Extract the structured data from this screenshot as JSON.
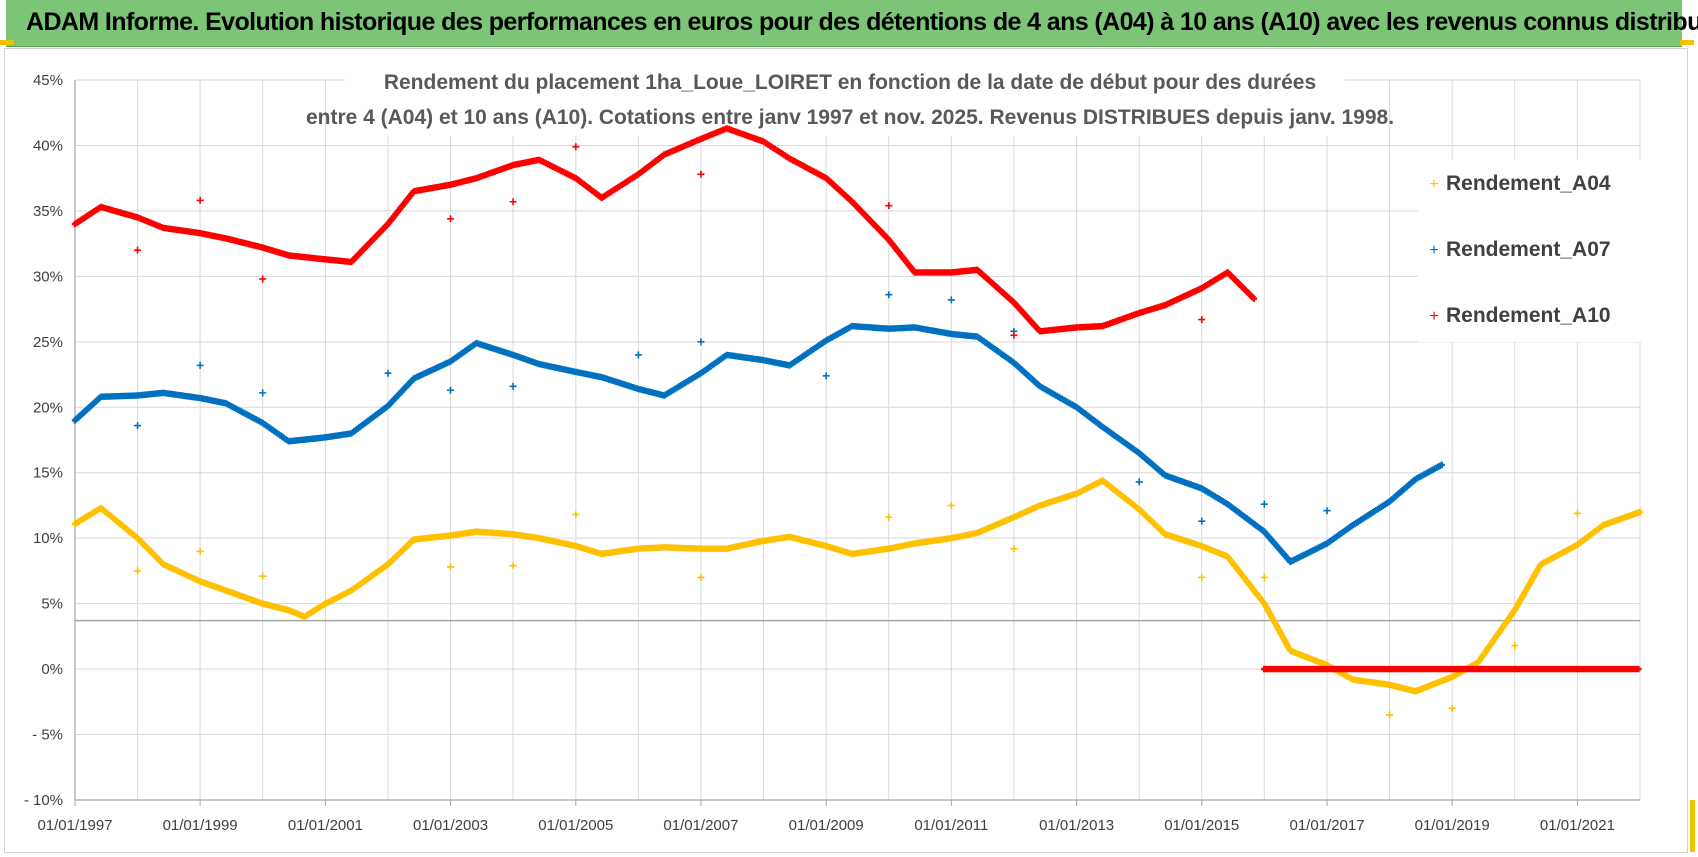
{
  "banner": {
    "title": "ADAM Informe. Evolution historique des performances en euros pour des détentions de 4 ans (A04) à 10 ans (A10) avec les revenus connus distribués"
  },
  "colors": {
    "banner_bg": "#7cc576",
    "accent": "#f2c200",
    "a04": "#ffc000",
    "a07": "#0070c0",
    "a10": "#ff0000",
    "grid": "#d9d9d9"
  },
  "chart_data": {
    "type": "scatter",
    "title_lines": [
      "Rendement du placement 1ha_Loue_LOIRET en fonction de la date de début pour des durées",
      "entre 4 (A04) et 10 ans (A10). Cotations entre janv 1997 et nov. 2025. Revenus DISTRIBUES depuis janv. 1998."
    ],
    "xlabel": "",
    "ylabel": "",
    "xlim": [
      "1997-01-01",
      "2022-01-01"
    ],
    "ylim": [
      -10,
      45
    ],
    "x_ticks": [
      "01/01/1997",
      "01/01/1999",
      "01/01/2001",
      "01/01/2003",
      "01/01/2005",
      "01/01/2007",
      "01/01/2009",
      "01/01/2011",
      "01/01/2013",
      "01/01/2015",
      "01/01/2017",
      "01/01/2019",
      "01/01/2021"
    ],
    "y_ticks": [
      "45%",
      "40%",
      "35%",
      "30%",
      "25%",
      "20%",
      "15%",
      "10%",
      "5%",
      "0%",
      "- 5%",
      "- 10%"
    ],
    "grid": true,
    "legend_position": "right",
    "series": [
      {
        "name": "Rendement_A04",
        "color": "#ffc000",
        "points": [
          [
            "1997-01-01",
            11.1
          ],
          [
            "1997-06-01",
            12.3
          ],
          [
            "1998-01-01",
            10.0
          ],
          [
            "1998-06-01",
            8.0
          ],
          [
            "1999-01-01",
            6.7
          ],
          [
            "1999-06-01",
            6.0
          ],
          [
            "2000-01-01",
            5.0
          ],
          [
            "2000-06-01",
            4.5
          ],
          [
            "2000-09-01",
            4.0
          ],
          [
            "2001-01-01",
            5.0
          ],
          [
            "2001-06-01",
            6.0
          ],
          [
            "2002-01-01",
            8.0
          ],
          [
            "2002-06-01",
            9.9
          ],
          [
            "2003-01-01",
            10.2
          ],
          [
            "2003-06-01",
            10.5
          ],
          [
            "2004-01-01",
            10.3
          ],
          [
            "2004-06-01",
            10.0
          ],
          [
            "2005-01-01",
            9.4
          ],
          [
            "2005-06-01",
            8.8
          ],
          [
            "2006-01-01",
            9.2
          ],
          [
            "2006-06-01",
            9.3
          ],
          [
            "2007-01-01",
            9.2
          ],
          [
            "2007-06-01",
            9.2
          ],
          [
            "2008-01-01",
            9.8
          ],
          [
            "2008-06-01",
            10.1
          ],
          [
            "2009-01-01",
            9.4
          ],
          [
            "2009-06-01",
            8.8
          ],
          [
            "2010-01-01",
            9.2
          ],
          [
            "2010-06-01",
            9.6
          ],
          [
            "2011-01-01",
            10.0
          ],
          [
            "2011-06-01",
            10.4
          ],
          [
            "2012-01-01",
            11.6
          ],
          [
            "2012-06-01",
            12.5
          ],
          [
            "2013-01-01",
            13.4
          ],
          [
            "2013-06-01",
            14.4
          ],
          [
            "2014-01-01",
            12.2
          ],
          [
            "2014-06-01",
            10.3
          ],
          [
            "2015-01-01",
            9.4
          ],
          [
            "2015-06-01",
            8.6
          ],
          [
            "2016-01-01",
            5.0
          ],
          [
            "2016-06-01",
            1.4
          ],
          [
            "2017-01-01",
            0.3
          ],
          [
            "2017-06-01",
            -0.8
          ],
          [
            "2018-01-01",
            -1.2
          ],
          [
            "2018-06-01",
            -1.7
          ],
          [
            "2019-01-01",
            -0.6
          ],
          [
            "2019-06-01",
            0.5
          ],
          [
            "2020-01-01",
            4.5
          ],
          [
            "2020-06-01",
            8.0
          ],
          [
            "2021-01-01",
            9.5
          ],
          [
            "2021-06-01",
            11.0
          ],
          [
            "2022-01-01",
            12.0
          ]
        ],
        "distributed": [
          [
            "1998-01-01",
            7.5
          ],
          [
            "1999-01-01",
            9.0
          ],
          [
            "2000-01-01",
            7.1
          ],
          [
            "2003-01-01",
            7.8
          ],
          [
            "2004-01-01",
            7.9
          ],
          [
            "2005-01-01",
            11.8
          ],
          [
            "2007-01-01",
            7.0
          ],
          [
            "2010-01-01",
            11.6
          ],
          [
            "2011-01-01",
            12.5
          ],
          [
            "2012-01-01",
            9.2
          ],
          [
            "2015-01-01",
            7.0
          ],
          [
            "2016-01-01",
            7.0
          ],
          [
            "2018-01-01",
            -3.5
          ],
          [
            "2019-01-01",
            -3.0
          ],
          [
            "2020-01-01",
            1.8
          ],
          [
            "2021-01-01",
            11.9
          ]
        ]
      },
      {
        "name": "Rendement_A07",
        "color": "#0070c0",
        "points": [
          [
            "1997-01-01",
            19.0
          ],
          [
            "1997-06-01",
            20.8
          ],
          [
            "1998-01-01",
            20.9
          ],
          [
            "1998-06-01",
            21.1
          ],
          [
            "1999-01-01",
            20.7
          ],
          [
            "1999-06-01",
            20.3
          ],
          [
            "2000-01-01",
            18.8
          ],
          [
            "2000-06-01",
            17.4
          ],
          [
            "2001-01-01",
            17.7
          ],
          [
            "2001-06-01",
            18.0
          ],
          [
            "2002-01-01",
            20.1
          ],
          [
            "2002-06-01",
            22.2
          ],
          [
            "2003-01-01",
            23.5
          ],
          [
            "2003-06-01",
            24.9
          ],
          [
            "2004-01-01",
            24.0
          ],
          [
            "2004-06-01",
            23.3
          ],
          [
            "2005-01-01",
            22.7
          ],
          [
            "2005-06-01",
            22.3
          ],
          [
            "2006-01-01",
            21.4
          ],
          [
            "2006-06-01",
            20.9
          ],
          [
            "2007-01-01",
            22.6
          ],
          [
            "2007-06-01",
            24.0
          ],
          [
            "2008-01-01",
            23.6
          ],
          [
            "2008-06-01",
            23.2
          ],
          [
            "2009-01-01",
            25.1
          ],
          [
            "2009-06-01",
            26.2
          ],
          [
            "2010-01-01",
            26.0
          ],
          [
            "2010-06-01",
            26.1
          ],
          [
            "2011-01-01",
            25.6
          ],
          [
            "2011-06-01",
            25.4
          ],
          [
            "2012-01-01",
            23.4
          ],
          [
            "2012-06-01",
            21.6
          ],
          [
            "2013-01-01",
            20.0
          ],
          [
            "2013-06-01",
            18.5
          ],
          [
            "2014-01-01",
            16.5
          ],
          [
            "2014-06-01",
            14.8
          ],
          [
            "2015-01-01",
            13.8
          ],
          [
            "2015-06-01",
            12.6
          ],
          [
            "2016-01-01",
            10.5
          ],
          [
            "2016-06-01",
            8.2
          ],
          [
            "2017-01-01",
            9.6
          ],
          [
            "2017-06-01",
            11.0
          ],
          [
            "2018-01-01",
            12.8
          ],
          [
            "2018-06-01",
            14.5
          ],
          [
            "2018-11-01",
            15.6
          ]
        ],
        "distributed": [
          [
            "1998-01-01",
            18.6
          ],
          [
            "1999-01-01",
            23.2
          ],
          [
            "2000-01-01",
            21.1
          ],
          [
            "2002-01-01",
            22.6
          ],
          [
            "2003-01-01",
            21.3
          ],
          [
            "2004-01-01",
            21.6
          ],
          [
            "2006-01-01",
            24.0
          ],
          [
            "2007-01-01",
            25.0
          ],
          [
            "2009-01-01",
            22.4
          ],
          [
            "2010-01-01",
            28.6
          ],
          [
            "2011-01-01",
            28.2
          ],
          [
            "2012-01-01",
            25.8
          ],
          [
            "2014-01-01",
            14.3
          ],
          [
            "2015-01-01",
            11.3
          ],
          [
            "2016-01-01",
            12.6
          ],
          [
            "2017-01-01",
            12.1
          ]
        ]
      },
      {
        "name": "Rendement_A10",
        "color": "#ff0000",
        "points": [
          [
            "1997-01-01",
            34.0
          ],
          [
            "1997-06-01",
            35.3
          ],
          [
            "1998-01-01",
            34.5
          ],
          [
            "1998-06-01",
            33.7
          ],
          [
            "1999-01-01",
            33.3
          ],
          [
            "1999-06-01",
            32.9
          ],
          [
            "2000-01-01",
            32.2
          ],
          [
            "2000-06-01",
            31.6
          ],
          [
            "2001-01-01",
            31.3
          ],
          [
            "2001-06-01",
            31.1
          ],
          [
            "2002-01-01",
            34.0
          ],
          [
            "2002-06-01",
            36.5
          ],
          [
            "2003-01-01",
            37.0
          ],
          [
            "2003-06-01",
            37.5
          ],
          [
            "2004-01-01",
            38.5
          ],
          [
            "2004-06-01",
            38.9
          ],
          [
            "2005-01-01",
            37.5
          ],
          [
            "2005-06-01",
            36.0
          ],
          [
            "2006-01-01",
            37.8
          ],
          [
            "2006-06-01",
            39.3
          ],
          [
            "2007-01-01",
            40.5
          ],
          [
            "2007-06-01",
            41.3
          ],
          [
            "2008-01-01",
            40.3
          ],
          [
            "2008-06-01",
            39.0
          ],
          [
            "2009-01-01",
            37.5
          ],
          [
            "2009-06-01",
            35.7
          ],
          [
            "2010-01-01",
            32.8
          ],
          [
            "2010-06-01",
            30.3
          ],
          [
            "2011-01-01",
            30.3
          ],
          [
            "2011-06-01",
            30.5
          ],
          [
            "2012-01-01",
            28.0
          ],
          [
            "2012-06-01",
            25.8
          ],
          [
            "2013-01-01",
            26.1
          ],
          [
            "2013-06-01",
            26.2
          ],
          [
            "2014-01-01",
            27.2
          ],
          [
            "2014-06-01",
            27.8
          ],
          [
            "2015-01-01",
            29.1
          ],
          [
            "2015-06-01",
            30.3
          ],
          [
            "2015-11-01",
            28.3
          ]
        ],
        "zero_line": [
          "2016-01-01",
          "2022-01-01"
        ],
        "distributed": [
          [
            "1998-01-01",
            32.0
          ],
          [
            "1999-01-01",
            35.8
          ],
          [
            "2000-01-01",
            29.8
          ],
          [
            "2003-01-01",
            34.4
          ],
          [
            "2004-01-01",
            35.7
          ],
          [
            "2005-01-01",
            39.9
          ],
          [
            "2007-01-01",
            37.8
          ],
          [
            "2010-01-01",
            35.4
          ],
          [
            "2012-01-01",
            25.5
          ],
          [
            "2015-01-01",
            26.7
          ]
        ]
      }
    ]
  }
}
